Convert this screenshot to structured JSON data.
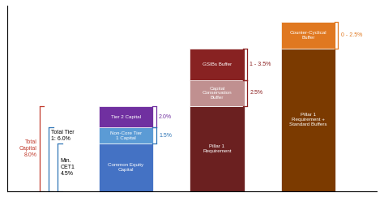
{
  "chart_data": {
    "type": "bar",
    "stacked": true,
    "categories": [
      null,
      null,
      null
    ],
    "tick_labels": false,
    "ylim": [
      0,
      17.5
    ],
    "yticks": [],
    "series": [
      {
        "name": "Common Equity\nCapital",
        "values": [
          4.5,
          null,
          null
        ],
        "color": "#4472c4"
      },
      {
        "name": "Non-Core Tier\n1 Capital",
        "values": [
          1.5,
          null,
          null
        ],
        "color": "#5b9bd5"
      },
      {
        "name": "Tier 2 Capital",
        "values": [
          2.0,
          null,
          null
        ],
        "color": "#7030a0"
      },
      {
        "name": "Pillar 1\nRequirement",
        "values": [
          null,
          8.0,
          null
        ],
        "color": "#6b2020"
      },
      {
        "name": "Capital\nConservation\nBuffer",
        "values": [
          null,
          2.5,
          null
        ],
        "color": "#c09090"
      },
      {
        "name": "GSIBs Buffer",
        "values": [
          null,
          3.0,
          null
        ],
        "color": "#882222"
      },
      {
        "name": "Pillar 1\nRequirement +\nStandard Buffers",
        "values": [
          null,
          null,
          13.5
        ],
        "color": "#7b3a00"
      },
      {
        "name": "Counter-Cyclical\nBuffer",
        "values": [
          null,
          null,
          2.5
        ],
        "color": "#e07820"
      }
    ],
    "annotations": [
      {
        "text": "Total\nCapital\n8.0%",
        "span": [
          0,
          8.0
        ],
        "category": 0,
        "side": "left",
        "color": "#c0392b",
        "text_color": "#c0392b"
      },
      {
        "text": "Total Tier\n1: 6.0%",
        "span": [
          0,
          6.0
        ],
        "category": 0,
        "side": "left",
        "color": "#2e75b6",
        "text_color": "black"
      },
      {
        "text": "Min.\nCET1\n4.5%",
        "span": [
          0,
          4.5
        ],
        "category": 0,
        "side": "left",
        "color": "#2e75b6",
        "text_color": "black"
      },
      {
        "text": "2.0%",
        "span": [
          6.0,
          8.0
        ],
        "category": 0,
        "side": "right",
        "color": "#7030a0",
        "text_color": "#7030a0"
      },
      {
        "text": "1.5%",
        "span": [
          4.5,
          6.0
        ],
        "category": 0,
        "side": "right",
        "color": "#2e75b6",
        "text_color": "#2e75b6"
      },
      {
        "text": "2.5%",
        "span": [
          8.0,
          10.5
        ],
        "category": 1,
        "side": "right",
        "color": "#8b2020",
        "text_color": "#8b2020"
      },
      {
        "text": "1 - 3.5%",
        "span": [
          10.5,
          13.5
        ],
        "category": 1,
        "side": "right",
        "color": "#8b2020",
        "text_color": "#8b2020"
      },
      {
        "text": "0 - 2.5%",
        "span": [
          13.5,
          16.0
        ],
        "category": 2,
        "side": "right",
        "color": "#e07820",
        "text_color": "#e07820"
      }
    ]
  }
}
